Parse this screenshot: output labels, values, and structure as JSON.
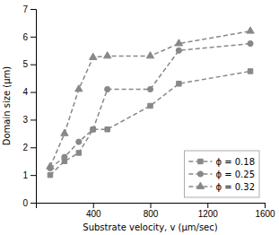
{
  "chart_data": {
    "type": "line",
    "x": [
      100,
      200,
      300,
      400,
      500,
      800,
      1000,
      1500
    ],
    "series": [
      {
        "name": "ϕ = 0.18",
        "color": "#888888",
        "marker": "square",
        "line_style": "dashed",
        "values": [
          1.0,
          1.5,
          1.8,
          2.65,
          2.65,
          3.5,
          4.3,
          4.75
        ]
      },
      {
        "name": "ϕ = 0.25",
        "color": "#888888",
        "marker": "circle",
        "line_style": "dashed",
        "values": [
          1.25,
          1.65,
          2.2,
          2.65,
          4.1,
          4.1,
          5.5,
          5.75
        ]
      },
      {
        "name": "ϕ = 0.32",
        "color": "#888888",
        "marker": "triangle",
        "line_style": "dashed",
        "values": [
          1.3,
          2.5,
          4.1,
          5.25,
          5.3,
          5.3,
          5.75,
          6.2
        ]
      }
    ],
    "x_label": "Substrate velocity, v (μm/sec)",
    "y_label": "Domain size (μm)",
    "xlim": [
      0,
      1600
    ],
    "ylim": [
      0,
      7
    ],
    "xticks": [
      400,
      800,
      1200,
      1600
    ],
    "yticks": [
      0,
      1,
      2,
      3,
      4,
      5,
      6,
      7
    ],
    "legend": "lower right"
  }
}
